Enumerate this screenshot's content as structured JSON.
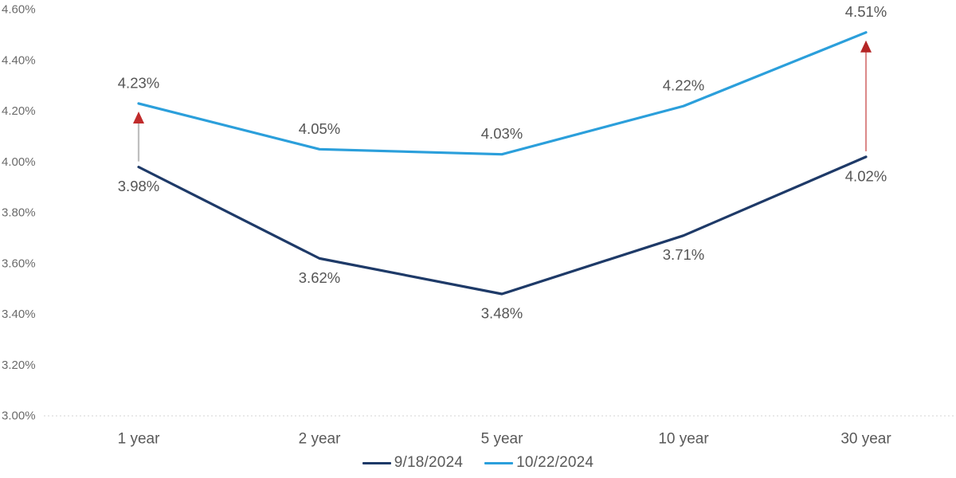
{
  "chart_data": {
    "type": "line",
    "title": "",
    "xlabel": "",
    "ylabel": "",
    "categories": [
      "1 year",
      "2 year",
      "5 year",
      "10 year",
      "30 year"
    ],
    "series": [
      {
        "name": "9/18/2024",
        "color": "#1E3A68",
        "values": [
          3.98,
          3.62,
          3.48,
          3.71,
          4.02
        ],
        "point_labels": [
          "3.98%",
          "3.62%",
          "3.48%",
          "3.71%",
          "4.02%"
        ],
        "label_position": "below"
      },
      {
        "name": "10/22/2024",
        "color": "#2B9FDB",
        "values": [
          4.23,
          4.05,
          4.03,
          4.22,
          4.51
        ],
        "point_labels": [
          "4.23%",
          "4.05%",
          "4.03%",
          "4.22%",
          "4.51%"
        ],
        "label_position": "above"
      }
    ],
    "y_axis": {
      "min": 3.0,
      "max": 4.6,
      "step": 0.2,
      "tick_labels": [
        "3.00%",
        "3.20%",
        "3.40%",
        "3.60%",
        "3.80%",
        "4.00%",
        "4.20%",
        "4.40%",
        "4.60%"
      ]
    },
    "grid": "dotted-baseline-only",
    "baseline_color": "#dcdcdc",
    "legend_position": "bottom",
    "annotations": [
      {
        "type": "up-arrow",
        "category_index": 0,
        "shaft_color": "#bfbfbf",
        "head_color": "#c02b2b"
      },
      {
        "type": "up-arrow",
        "category_index": 4,
        "shaft_color": "#dc8c8c",
        "head_color": "#b42525"
      }
    ]
  }
}
